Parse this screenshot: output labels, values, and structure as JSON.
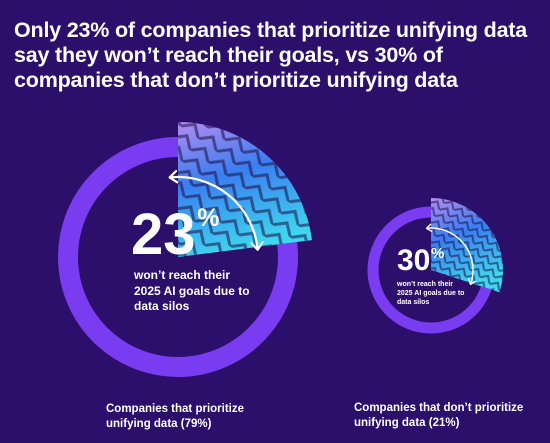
{
  "title": "Only 23% of companies that prioritize unifying data say they won’t reach their goals, vs 30% of companies that don’t prioritize unifying data",
  "colors": {
    "background": "#2b0f6b",
    "ring": "#7a3cf0",
    "wedge_top": "#b38cf0",
    "wedge_mid": "#3a7ef0",
    "wedge_bottom": "#3fd6ef",
    "text": "#ffffff"
  },
  "chart_data": [
    {
      "type": "pie",
      "values": [
        23,
        77
      ],
      "highlight_value": "23",
      "percent_symbol": "%",
      "description_lines": [
        "won’t reach their",
        "2025 AI goals due to",
        "data silos"
      ],
      "caption_lines": [
        "Companies that prioritize",
        "unifying data (79%)"
      ]
    },
    {
      "type": "pie",
      "values": [
        30,
        70
      ],
      "highlight_value": "30",
      "percent_symbol": "%",
      "description_lines": [
        "won’t reach their",
        "2025 AI goals due to",
        "data silos"
      ],
      "caption_lines": [
        "Companies that don’t prioritize",
        "unifying data (21%)"
      ]
    }
  ]
}
